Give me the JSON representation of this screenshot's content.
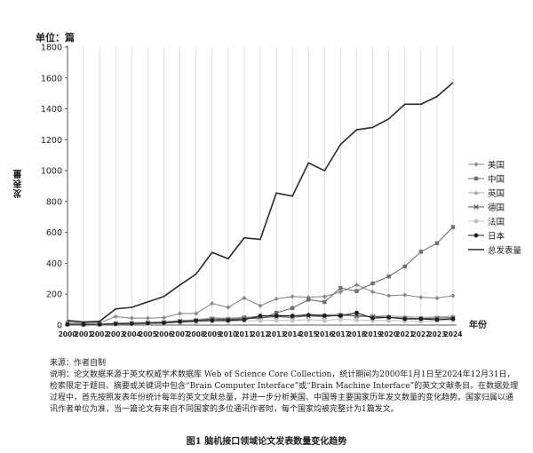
{
  "chart_data": {
    "type": "line",
    "unit_label": "单位：篇",
    "ylabel": "发表量",
    "xlabel": "年份",
    "ylim": [
      0,
      1800
    ],
    "y_ticks": [
      "0",
      "200",
      "400",
      "600",
      "800",
      "1000",
      "1200",
      "1400",
      "1600",
      "1800"
    ],
    "x": [
      "2000",
      "2001",
      "2002",
      "2003",
      "2004",
      "2005",
      "2006",
      "2007",
      "2008",
      "2009",
      "2010",
      "2011",
      "2012",
      "2013",
      "2014",
      "2015",
      "2016",
      "2017",
      "2018",
      "2019",
      "2020",
      "2021",
      "2022",
      "2023",
      "2024"
    ],
    "grid": "vertical",
    "legend_position": "right",
    "series": [
      {
        "name": "美国",
        "color": "#8a8a8a",
        "marker": "diamond",
        "values": [
          20,
          10,
          15,
          55,
          45,
          45,
          48,
          75,
          75,
          140,
          115,
          175,
          125,
          170,
          185,
          180,
          185,
          215,
          260,
          215,
          190,
          195,
          180,
          175,
          190
        ]
      },
      {
        "name": "中国",
        "color": "#6e6e6e",
        "marker": "square",
        "values": [
          3,
          2,
          3,
          5,
          7,
          10,
          15,
          20,
          25,
          40,
          40,
          50,
          40,
          80,
          110,
          165,
          150,
          240,
          220,
          270,
          315,
          380,
          475,
          530,
          635
        ]
      },
      {
        "name": "英国",
        "color": "#a8a8a8",
        "marker": "triangle",
        "values": [
          8,
          6,
          7,
          12,
          15,
          18,
          22,
          30,
          35,
          48,
          45,
          52,
          55,
          65,
          60,
          70,
          65,
          72,
          55,
          58,
          60,
          55,
          50,
          52,
          58
        ]
      },
      {
        "name": "德国",
        "color": "#555555",
        "marker": "x",
        "values": [
          6,
          5,
          6,
          10,
          12,
          15,
          18,
          25,
          30,
          40,
          35,
          42,
          48,
          55,
          50,
          60,
          55,
          65,
          60,
          55,
          50,
          45,
          42,
          45,
          48
        ]
      },
      {
        "name": "法国",
        "color": "#c4c4c4",
        "marker": "square",
        "values": [
          4,
          3,
          4,
          6,
          8,
          10,
          12,
          15,
          18,
          25,
          22,
          28,
          30,
          32,
          30,
          35,
          30,
          38,
          33,
          30,
          30,
          28,
          25,
          28,
          32
        ]
      },
      {
        "name": "日本",
        "color": "#1e1e1e",
        "marker": "circle",
        "values": [
          5,
          4,
          5,
          8,
          10,
          12,
          14,
          22,
          28,
          30,
          30,
          35,
          60,
          60,
          60,
          65,
          62,
          60,
          80,
          45,
          50,
          40,
          40,
          35,
          40
        ]
      },
      {
        "name": "总发表量",
        "color": "#2a2a2a",
        "marker": "none",
        "values": [
          30,
          20,
          25,
          105,
          115,
          150,
          185,
          260,
          330,
          470,
          430,
          565,
          555,
          855,
          835,
          1050,
          1000,
          1170,
          1265,
          1280,
          1335,
          1430,
          1430,
          1480,
          1570
        ]
      }
    ]
  },
  "notes": {
    "source": "来源：作者自制",
    "explanation": "说明：论文数据来源于英文权威学术数据库 Web of Science Core Collection，统计期间为2000年1月1日至2024年12月31日，检索限定于题目、摘要或关键词中包含“Brain Computer Interface”或“Brain Machine Interface”的英文文献条目。在数据处理过程中，首先按照发表年份统计每年的英文文献总量，并进一步分析美国、中国等主要国家历年发文数量的变化趋势。国家归属以通讯作者单位为准，当一篇论文有来自不同国家的多位通讯作者时，每个国家均被完整计为1篇发文。"
  },
  "caption": "图1 脑机接口领域论文发表数量变化趋势"
}
